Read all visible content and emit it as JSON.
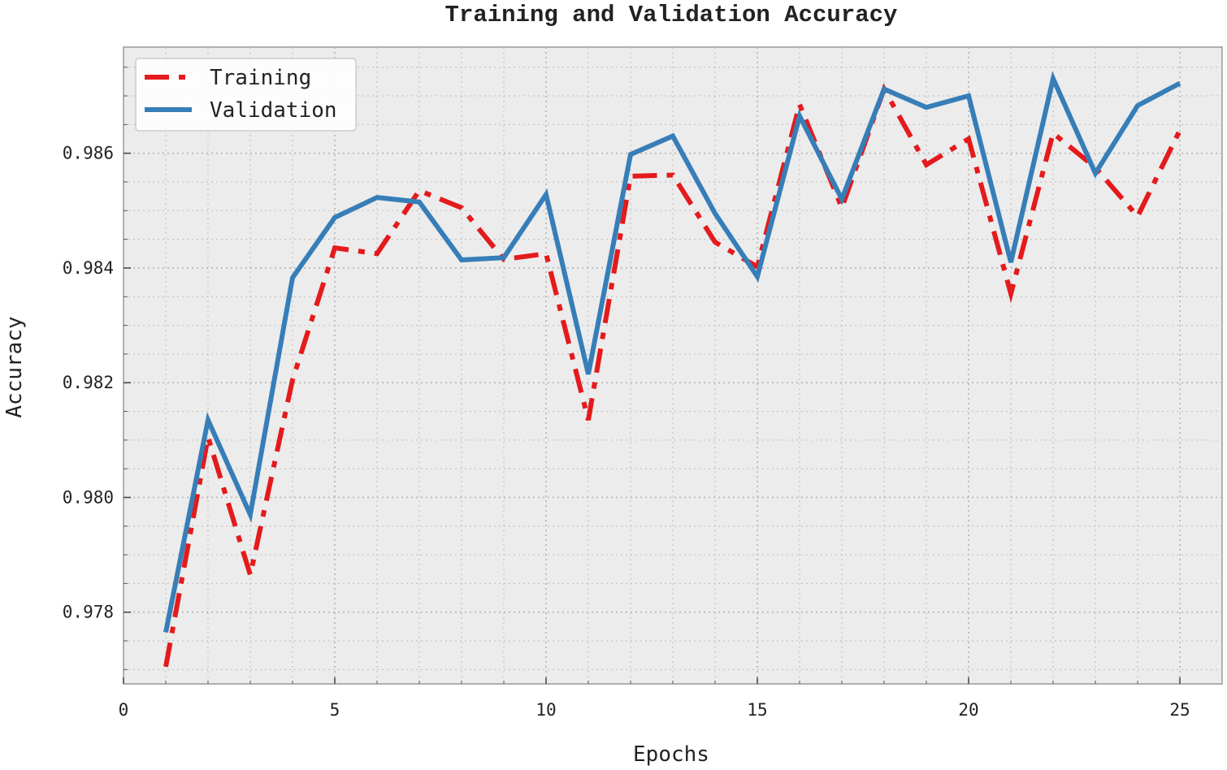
{
  "chart_data": {
    "type": "line",
    "title": "Training and Validation Accuracy",
    "xlabel": "Epochs",
    "ylabel": "Accuracy",
    "xlim": [
      0,
      26
    ],
    "ylim": [
      0.97675,
      0.98785
    ],
    "xticks": [
      0,
      5,
      10,
      15,
      20,
      25
    ],
    "xtick_labels": [
      "0",
      "5",
      "10",
      "15",
      "20",
      "25"
    ],
    "yticks": [
      0.978,
      0.98,
      0.982,
      0.984,
      0.986
    ],
    "ytick_labels": [
      "0.978",
      "0.980",
      "0.982",
      "0.984",
      "0.986"
    ],
    "grid": true,
    "legend_position": "top-left",
    "x": [
      1,
      2,
      3,
      4,
      5,
      6,
      7,
      8,
      9,
      10,
      11,
      12,
      13,
      14,
      15,
      16,
      17,
      18,
      19,
      20,
      21,
      22,
      23,
      24,
      25
    ],
    "series": [
      {
        "name": "Training",
        "color": "#e41a1c",
        "linestyle": "dashdot",
        "values": [
          0.97705,
          0.98105,
          0.97865,
          0.98205,
          0.98435,
          0.98425,
          0.98535,
          0.98505,
          0.98415,
          0.98425,
          0.98135,
          0.9856,
          0.98562,
          0.98445,
          0.98402,
          0.98685,
          0.98505,
          0.98712,
          0.9858,
          0.98625,
          0.98355,
          0.98635,
          0.98575,
          0.9849,
          0.9864
        ]
      },
      {
        "name": "Validation",
        "color": "#377eb8",
        "linestyle": "solid",
        "values": [
          0.97765,
          0.98135,
          0.9797,
          0.98383,
          0.98488,
          0.98523,
          0.98515,
          0.98414,
          0.98418,
          0.98528,
          0.98215,
          0.98598,
          0.9863,
          0.98495,
          0.98385,
          0.98665,
          0.9852,
          0.98712,
          0.9868,
          0.987,
          0.9841,
          0.9873,
          0.98565,
          0.98683,
          0.98722
        ]
      }
    ]
  }
}
